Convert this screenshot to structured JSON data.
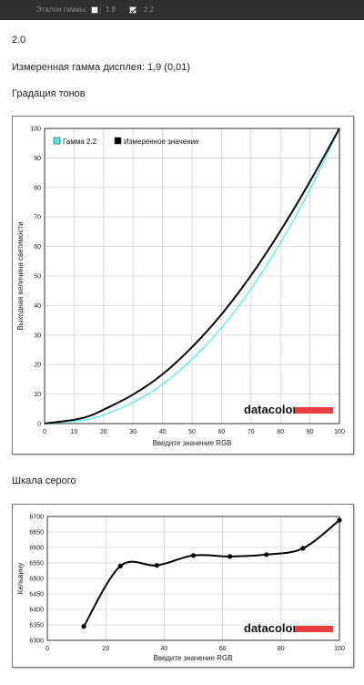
{
  "topbar": {
    "gamma_ref_label": "Эталон гаммы:",
    "options": [
      {
        "label": "1.8",
        "checked": false
      },
      {
        "label": "2.2",
        "checked": true
      }
    ]
  },
  "version": "2.0",
  "measured_gamma": "Измеренная гамма дисплея: 1,9 (0,01)",
  "tone_section_title": "Градация тонов",
  "gray_section_title": "Шкала серого",
  "logo_text": "datacolor",
  "colors": {
    "reference": "#44eeee",
    "measured": "#000000",
    "logo_bar": "#e84040"
  },
  "chart_data": [
    {
      "type": "line",
      "xlabel": "Введите значение RGB",
      "ylabel": "Выходная величина светимости",
      "xlim": [
        0,
        100
      ],
      "ylim": [
        0,
        100
      ],
      "xticks": [
        "0",
        "10",
        "20",
        "30",
        "40",
        "50",
        "60",
        "70",
        "80",
        "90",
        "100"
      ],
      "yticks": [
        "0",
        "10",
        "20",
        "30",
        "40",
        "50",
        "60",
        "70",
        "80",
        "90",
        "100"
      ],
      "grid": true,
      "legend_position": "top-left",
      "x": [
        0,
        10,
        15,
        20,
        30,
        40,
        50,
        60,
        70,
        80,
        90,
        100
      ],
      "series": [
        {
          "name": "Гамма 2.2",
          "values": [
            0,
            0.8,
            1.5,
            2.9,
            7.1,
            13.3,
            21.8,
            32.4,
            45.6,
            61.2,
            79.3,
            100
          ]
        },
        {
          "name": "Измеренное значение",
          "values": [
            0,
            1.3,
            2.5,
            4.7,
            9.8,
            16.7,
            25.9,
            37.0,
            50.2,
            65.3,
            82.0,
            100
          ]
        }
      ]
    },
    {
      "type": "line",
      "xlabel": "Введите значение RGB",
      "ylabel": "Кельвину",
      "xlim": [
        0,
        100
      ],
      "ylim": [
        6300,
        6700
      ],
      "xticks": [
        "0",
        "20",
        "40",
        "60",
        "80",
        "100"
      ],
      "yticks": [
        "6300",
        "6350",
        "6400",
        "6450",
        "6500",
        "6550",
        "6600",
        "6650",
        "6700"
      ],
      "grid": true,
      "x": [
        12.5,
        25,
        37.5,
        50,
        62.5,
        75,
        87.5,
        100
      ],
      "values": [
        6345,
        6540,
        6542,
        6574,
        6571,
        6577,
        6597,
        6688
      ]
    }
  ]
}
